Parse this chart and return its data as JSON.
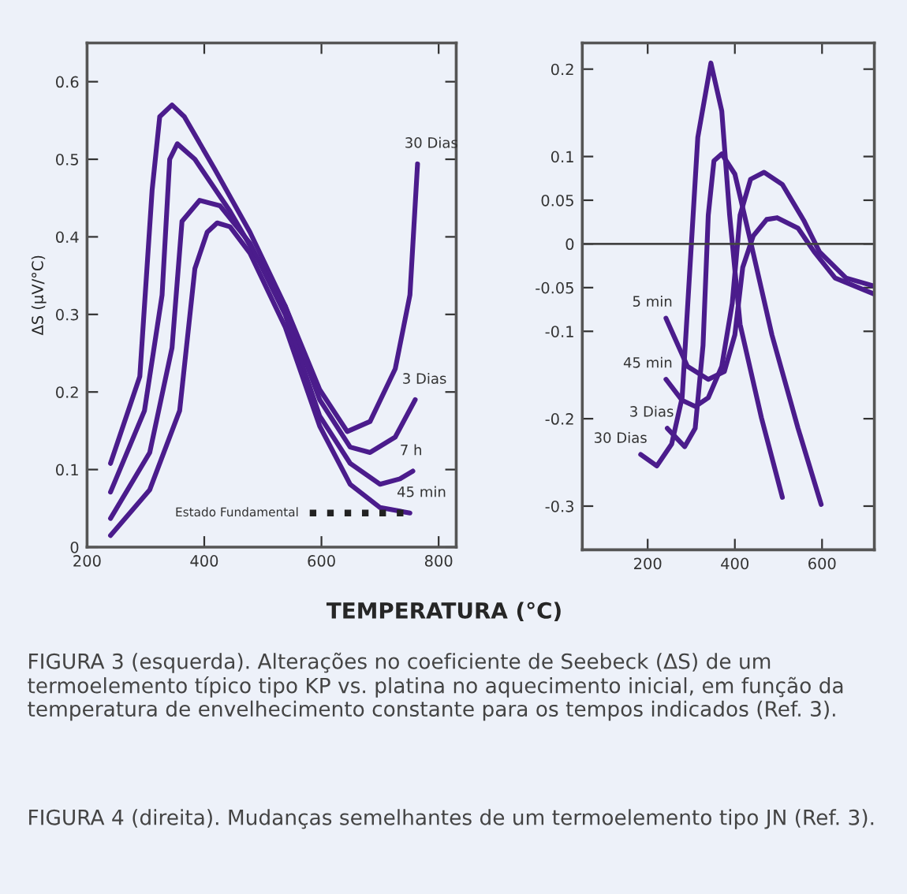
{
  "chart_data": [
    {
      "type": "line",
      "xlabel": "TEMPERATURA (°C)",
      "ylabel": "ΔS (µV/°C)",
      "xlim": [
        200,
        830
      ],
      "ylim": [
        0,
        0.65
      ],
      "xticks": [
        200,
        400,
        600,
        800
      ],
      "yticks": [
        0,
        0.1,
        0.2,
        0.3,
        0.4,
        0.5,
        0.6
      ],
      "grid": false,
      "legend": false,
      "series": [
        {
          "name": "30 Dias",
          "color": "#4b1c8c",
          "x": [
            240,
            290,
            311,
            324,
            345,
            366,
            418,
            478,
            538,
            597,
            644,
            683,
            726,
            751,
            764
          ],
          "values": [
            0.108,
            0.22,
            0.46,
            0.555,
            0.57,
            0.555,
            0.487,
            0.406,
            0.311,
            0.203,
            0.149,
            0.162,
            0.23,
            0.325,
            0.494
          ]
        },
        {
          "name": "3 Dias",
          "color": "#4b1c8c",
          "x": [
            240,
            298,
            328,
            341,
            354,
            384,
            444,
            538,
            597,
            649,
            683,
            726,
            760
          ],
          "values": [
            0.071,
            0.176,
            0.325,
            0.5,
            0.52,
            0.5,
            0.433,
            0.311,
            0.19,
            0.129,
            0.122,
            0.142,
            0.19
          ]
        },
        {
          "name": "7 h",
          "color": "#4b1c8c",
          "x": [
            240,
            307,
            345,
            362,
            392,
            427,
            478,
            538,
            597,
            649,
            700,
            734,
            756
          ],
          "values": [
            0.037,
            0.122,
            0.257,
            0.42,
            0.447,
            0.44,
            0.392,
            0.3,
            0.169,
            0.108,
            0.081,
            0.088,
            0.098
          ]
        },
        {
          "name": "45 min",
          "color": "#4b1c8c",
          "x": [
            240,
            307,
            358,
            384,
            405,
            422,
            444,
            478,
            538,
            597,
            649,
            700,
            751
          ],
          "values": [
            0.015,
            0.074,
            0.176,
            0.359,
            0.406,
            0.418,
            0.413,
            0.379,
            0.284,
            0.156,
            0.081,
            0.051,
            0.044
          ]
        },
        {
          "color": "#222222",
          "line_style": "dotted",
          "x": [
            580,
            751
          ],
          "values": [
            0.044,
            0.044
          ]
        }
      ],
      "annotations": [
        {
          "text": "Estado Fundamental",
          "x": 580,
          "y": 0.044
        },
        "FIGURA 3 (esquerda). Alterações no coeficiente de Seebeck (ΔS) de um termoelemento típico tipo KP vs. platina no aquecimento inicial, em função da temperatura de envelhecimento constante para os tempos indicados (Ref. 3).",
        "FIGURA 4 (direita). Mudanças semelhantes de um termoelemento tipo JN (Ref. 3)."
      ]
    },
    {
      "type": "line",
      "xlim": [
        50,
        720
      ],
      "ylim": [
        -0.35,
        0.23
      ],
      "xticks": [
        200,
        400,
        600
      ],
      "yticks": [
        0.2,
        0.1,
        0.05,
        0,
        -0.05,
        -0.1,
        -0.2,
        -0.3
      ],
      "grid": false,
      "legend": false,
      "ref_lines": [
        {
          "axis": "y",
          "value": 0,
          "color": "#444444"
        }
      ],
      "series": [
        {
          "name": "5 min",
          "color": "#4b1c8c",
          "x": [
            242,
            291,
            339,
            376,
            400,
            418,
            442,
            473,
            497,
            545,
            582,
            630,
            718
          ],
          "values": [
            -0.085,
            -0.14,
            -0.155,
            -0.146,
            -0.104,
            -0.027,
            0.009,
            0.028,
            0.03,
            0.018,
            -0.009,
            -0.039,
            -0.057
          ]
        },
        {
          "name": "45 min",
          "color": "#4b1c8c",
          "x": [
            242,
            279,
            309,
            339,
            370,
            394,
            412,
            436,
            467,
            509,
            558,
            594,
            655,
            718
          ],
          "values": [
            -0.155,
            -0.179,
            -0.186,
            -0.176,
            -0.14,
            -0.068,
            0.033,
            0.074,
            0.082,
            0.068,
            0.027,
            -0.009,
            -0.039,
            -0.048
          ]
        },
        {
          "name": "3 Dias",
          "color": "#4b1c8c",
          "x": [
            245,
            285,
            309,
            327,
            339,
            352,
            370,
            400,
            436,
            485,
            545,
            598
          ],
          "values": [
            -0.211,
            -0.232,
            -0.211,
            -0.116,
            0.033,
            0.095,
            0.103,
            0.08,
            0.003,
            -0.104,
            -0.211,
            -0.298
          ]
        },
        {
          "name": "30 Dias",
          "color": "#4b1c8c",
          "x": [
            184,
            221,
            255,
            279,
            297,
            315,
            345,
            370,
            388,
            412,
            461,
            509
          ],
          "values": [
            -0.241,
            -0.254,
            -0.229,
            -0.176,
            -0.027,
            0.122,
            0.207,
            0.152,
            0.033,
            -0.092,
            -0.199,
            -0.29
          ]
        }
      ]
    }
  ]
}
